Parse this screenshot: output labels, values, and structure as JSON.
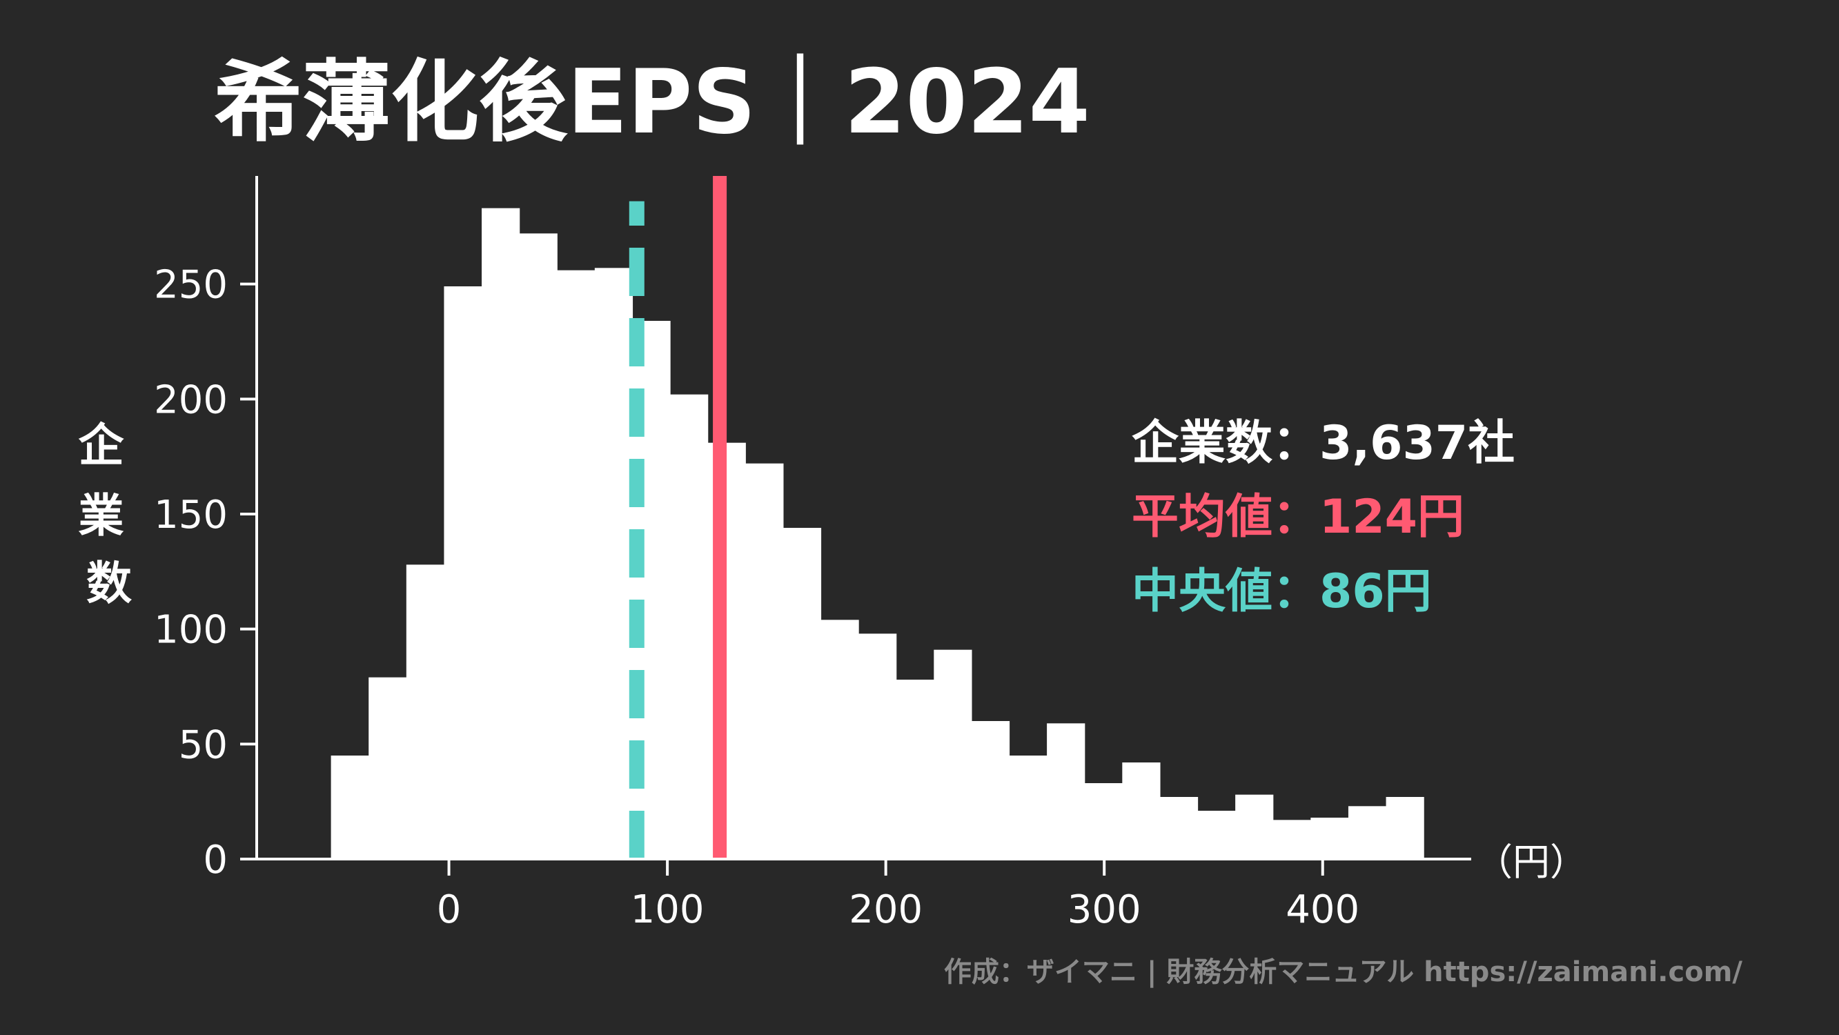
{
  "chart_data": {
    "type": "bar",
    "title": "希薄化後EPS｜2024",
    "ylabel": "企業数",
    "xunit": "（円）",
    "xlim": [
      -88,
      468
    ],
    "ylim": [
      0,
      297
    ],
    "xticks": [
      0,
      100,
      200,
      300,
      400
    ],
    "yticks": [
      0,
      50,
      100,
      150,
      200,
      250
    ],
    "bin_width": 17.25,
    "bin_edges_start": -54,
    "counts": [
      45,
      79,
      128,
      249,
      283,
      272,
      256,
      257,
      234,
      202,
      181,
      172,
      144,
      104,
      98,
      78,
      91,
      60,
      45,
      59,
      33,
      42,
      27,
      21,
      28,
      17,
      18,
      23,
      27
    ],
    "mean": 124,
    "median": 86,
    "stats": {
      "companies": "企業数：3,637社",
      "mean": "平均値：124円",
      "median": "中央値：86円"
    }
  },
  "colors": {
    "background": "#282828",
    "bars": "#ffffff",
    "mean_line": "#ff5a72",
    "median_line": "#5ad2c8"
  },
  "credit": "作成：ザイマニ | 財務分析マニュアル https://zaimani.com/"
}
